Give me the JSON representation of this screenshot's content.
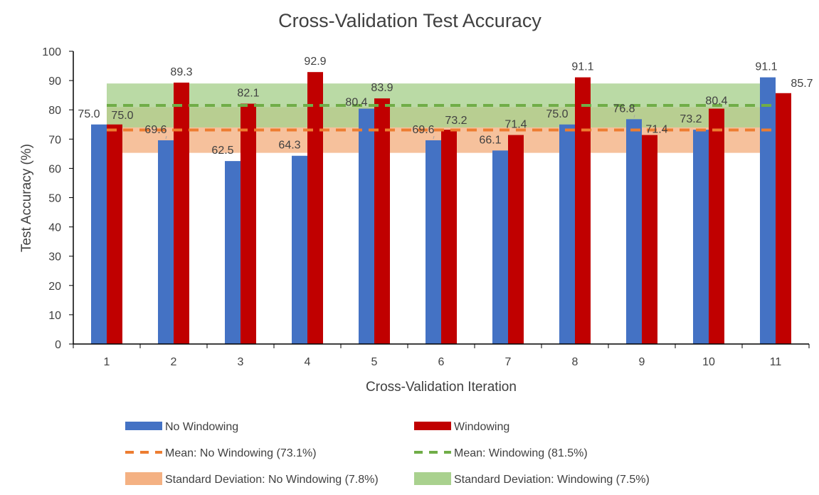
{
  "chart_data": {
    "type": "bar",
    "title": "Cross-Validation Test Accuracy",
    "xlabel": "Cross-Validation Iteration",
    "ylabel": "Test Accuracy (%)",
    "ylim": [
      0,
      100
    ],
    "yticks": [
      "0",
      "10",
      "20",
      "30",
      "40",
      "50",
      "60",
      "70",
      "80",
      "90",
      "100"
    ],
    "categories": [
      "1",
      "2",
      "3",
      "4",
      "5",
      "6",
      "7",
      "8",
      "9",
      "10",
      "11"
    ],
    "series": [
      {
        "name": "No Windowing",
        "color": "#4472C4",
        "values": [
          75.0,
          69.6,
          62.5,
          64.3,
          80.4,
          69.6,
          66.1,
          75.0,
          76.8,
          73.2,
          91.1
        ],
        "labels": [
          "75.0",
          "69.6",
          "62.5",
          "64.3",
          "80.4",
          "69.6",
          "66.1",
          "75.0",
          "76.8",
          "73.2",
          "91.1"
        ]
      },
      {
        "name": "Windowing",
        "color": "#C00000",
        "values": [
          75.0,
          89.3,
          82.1,
          92.9,
          83.9,
          73.2,
          71.4,
          91.1,
          71.4,
          80.4,
          85.7
        ],
        "labels": [
          "75.0",
          "89.3",
          "82.1",
          "92.9",
          "83.9",
          "73.2",
          "71.4",
          "91.1",
          "71.4",
          "80.4",
          "85.7"
        ]
      }
    ],
    "mean_lines": [
      {
        "name": "Mean: No Windowing (73.1%)",
        "value": 73.1,
        "color": "#ED7D31"
      },
      {
        "name": "Mean: Windowing (81.5%)",
        "value": 81.5,
        "color": "#70AD47"
      }
    ],
    "std_bands": [
      {
        "name": "Standard Deviation: No Windowing (7.8%)",
        "mean": 73.1,
        "std": 7.8,
        "color": "#F4B183"
      },
      {
        "name": "Standard Deviation: Windowing (7.5%)",
        "mean": 81.5,
        "std": 7.5,
        "color": "#A9D18E"
      }
    ],
    "grid": false,
    "legend_position": "bottom"
  }
}
